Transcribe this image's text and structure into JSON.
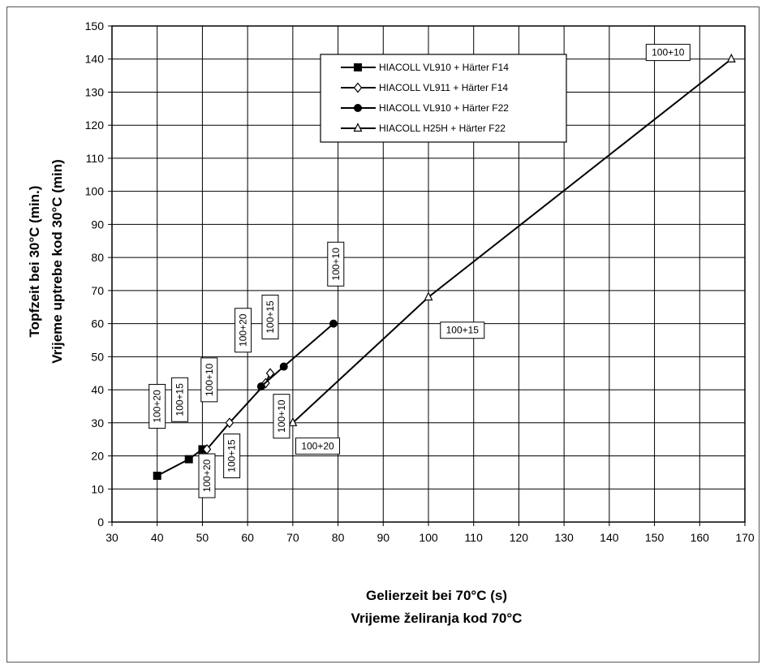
{
  "chart_data": {
    "type": "line",
    "xlabel": [
      "Gelierzeit bei 70°C (s)",
      "Vrijeme želiranja kod 70°C"
    ],
    "ylabel": [
      "Topfzeit bei 30°C (min.)",
      "Vrijeme uptrebe kod 30°C (min)"
    ],
    "xlim": [
      30,
      170
    ],
    "ylim": [
      0,
      150
    ],
    "xticks": [
      "30",
      "40",
      "50",
      "60",
      "70",
      "80",
      "90",
      "100",
      "110",
      "120",
      "130",
      "140",
      "150",
      "160",
      "170"
    ],
    "yticks": [
      "0",
      "10",
      "20",
      "30",
      "40",
      "50",
      "60",
      "70",
      "80",
      "90",
      "100",
      "110",
      "120",
      "130",
      "140",
      "150"
    ],
    "grid": true,
    "legend_position": "top-right",
    "series": [
      {
        "name": "HIACOLL VL910 + Härter F14",
        "marker": "square-filled",
        "x": [
          40,
          47,
          50
        ],
        "y": [
          14,
          19,
          22
        ]
      },
      {
        "name": "HIACOLL VL911 + Härter F14",
        "marker": "diamond-open",
        "x": [
          51,
          56,
          64,
          65
        ],
        "y": [
          22,
          30,
          42,
          45
        ]
      },
      {
        "name": "HIACOLL VL910 + Härter F22",
        "marker": "circle-filled",
        "x": [
          63,
          68,
          79
        ],
        "y": [
          41,
          47,
          60
        ]
      },
      {
        "name": "HIACOLL H25H + Härter F22",
        "marker": "triangle-open",
        "x": [
          70,
          100,
          167
        ],
        "y": [
          30,
          68,
          140
        ]
      }
    ],
    "annotations": [
      {
        "text": "100+20",
        "x": 40,
        "y": 35,
        "rotate": -90
      },
      {
        "text": "100+15",
        "x": 45,
        "y": 37,
        "rotate": -90
      },
      {
        "text": "100+10",
        "x": 51.5,
        "y": 43,
        "rotate": -90
      },
      {
        "text": "100+20",
        "x": 51,
        "y": 14,
        "rotate": -90
      },
      {
        "text": "100+15",
        "x": 56.5,
        "y": 20,
        "rotate": -90
      },
      {
        "text": "100+20",
        "x": 59,
        "y": 58,
        "rotate": -90
      },
      {
        "text": "100+15",
        "x": 65,
        "y": 62,
        "rotate": -90
      },
      {
        "text": "100+10",
        "x": 67.5,
        "y": 32,
        "rotate": -90
      },
      {
        "text": "100+10",
        "x": 79.5,
        "y": 78,
        "rotate": -90
      },
      {
        "text": "100+20",
        "x": 75.5,
        "y": 23,
        "rotate": 0
      },
      {
        "text": "100+15",
        "x": 107.5,
        "y": 58,
        "rotate": 0
      },
      {
        "text": "100+10",
        "x": 153,
        "y": 142,
        "rotate": 0
      }
    ]
  }
}
